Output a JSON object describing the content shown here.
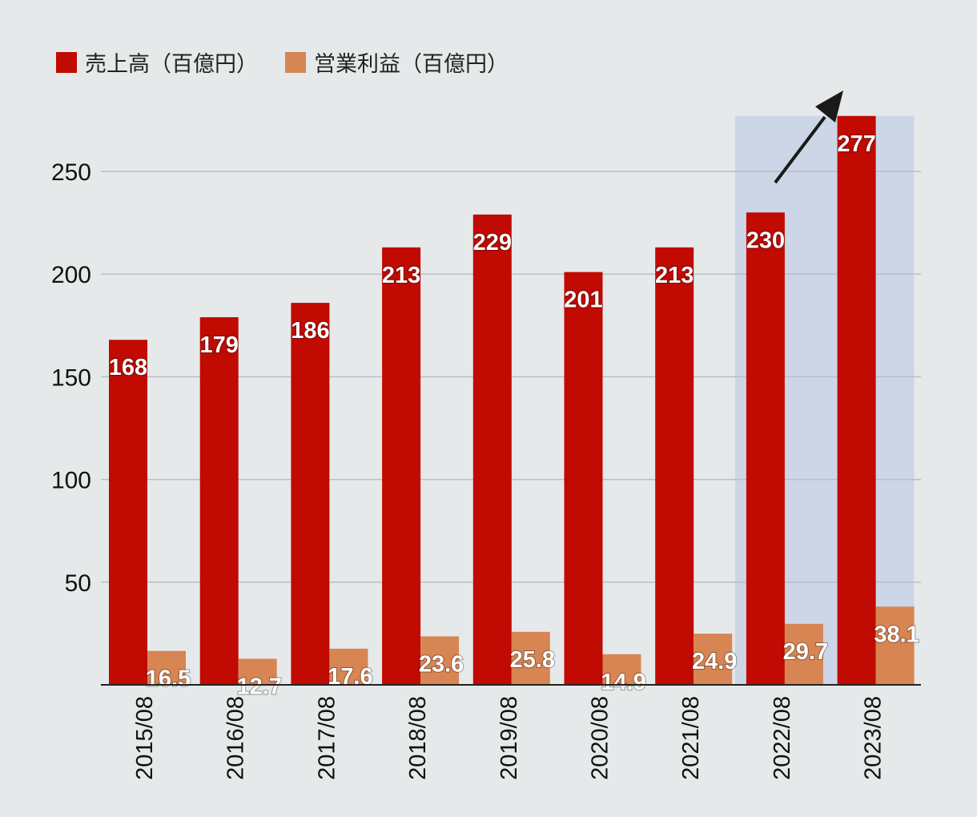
{
  "legend": {
    "sales_label": "売上高（百億円）",
    "profit_label": "営業利益（百億円）"
  },
  "colors": {
    "sales": "#c00a02",
    "profit": "#d78553",
    "highlight": "#cdd6e6",
    "grid": "#b9bec2",
    "axis": "#222222",
    "arrow": "#1a1a1a"
  },
  "chart_data": {
    "type": "bar",
    "categories": [
      "2015/08",
      "2016/08",
      "2017/08",
      "2018/08",
      "2019/08",
      "2020/08",
      "2021/08",
      "2022/08",
      "2023/08"
    ],
    "series": [
      {
        "name": "売上高（百億円）",
        "values": [
          168,
          179,
          186,
          213,
          229,
          201,
          213,
          230,
          277
        ]
      },
      {
        "name": "営業利益（百億円）",
        "values": [
          16.5,
          12.7,
          17.6,
          23.6,
          25.8,
          14.9,
          24.9,
          29.7,
          38.1
        ]
      }
    ],
    "yticks": [
      50,
      100,
      150,
      200,
      250
    ],
    "ylim": [
      0,
      300
    ],
    "grid": true,
    "legend_position": "top-left",
    "highlight_categories": [
      "2022/08",
      "2023/08"
    ],
    "annotations": [
      "upward arrow over 2022/08–2023/08"
    ]
  }
}
